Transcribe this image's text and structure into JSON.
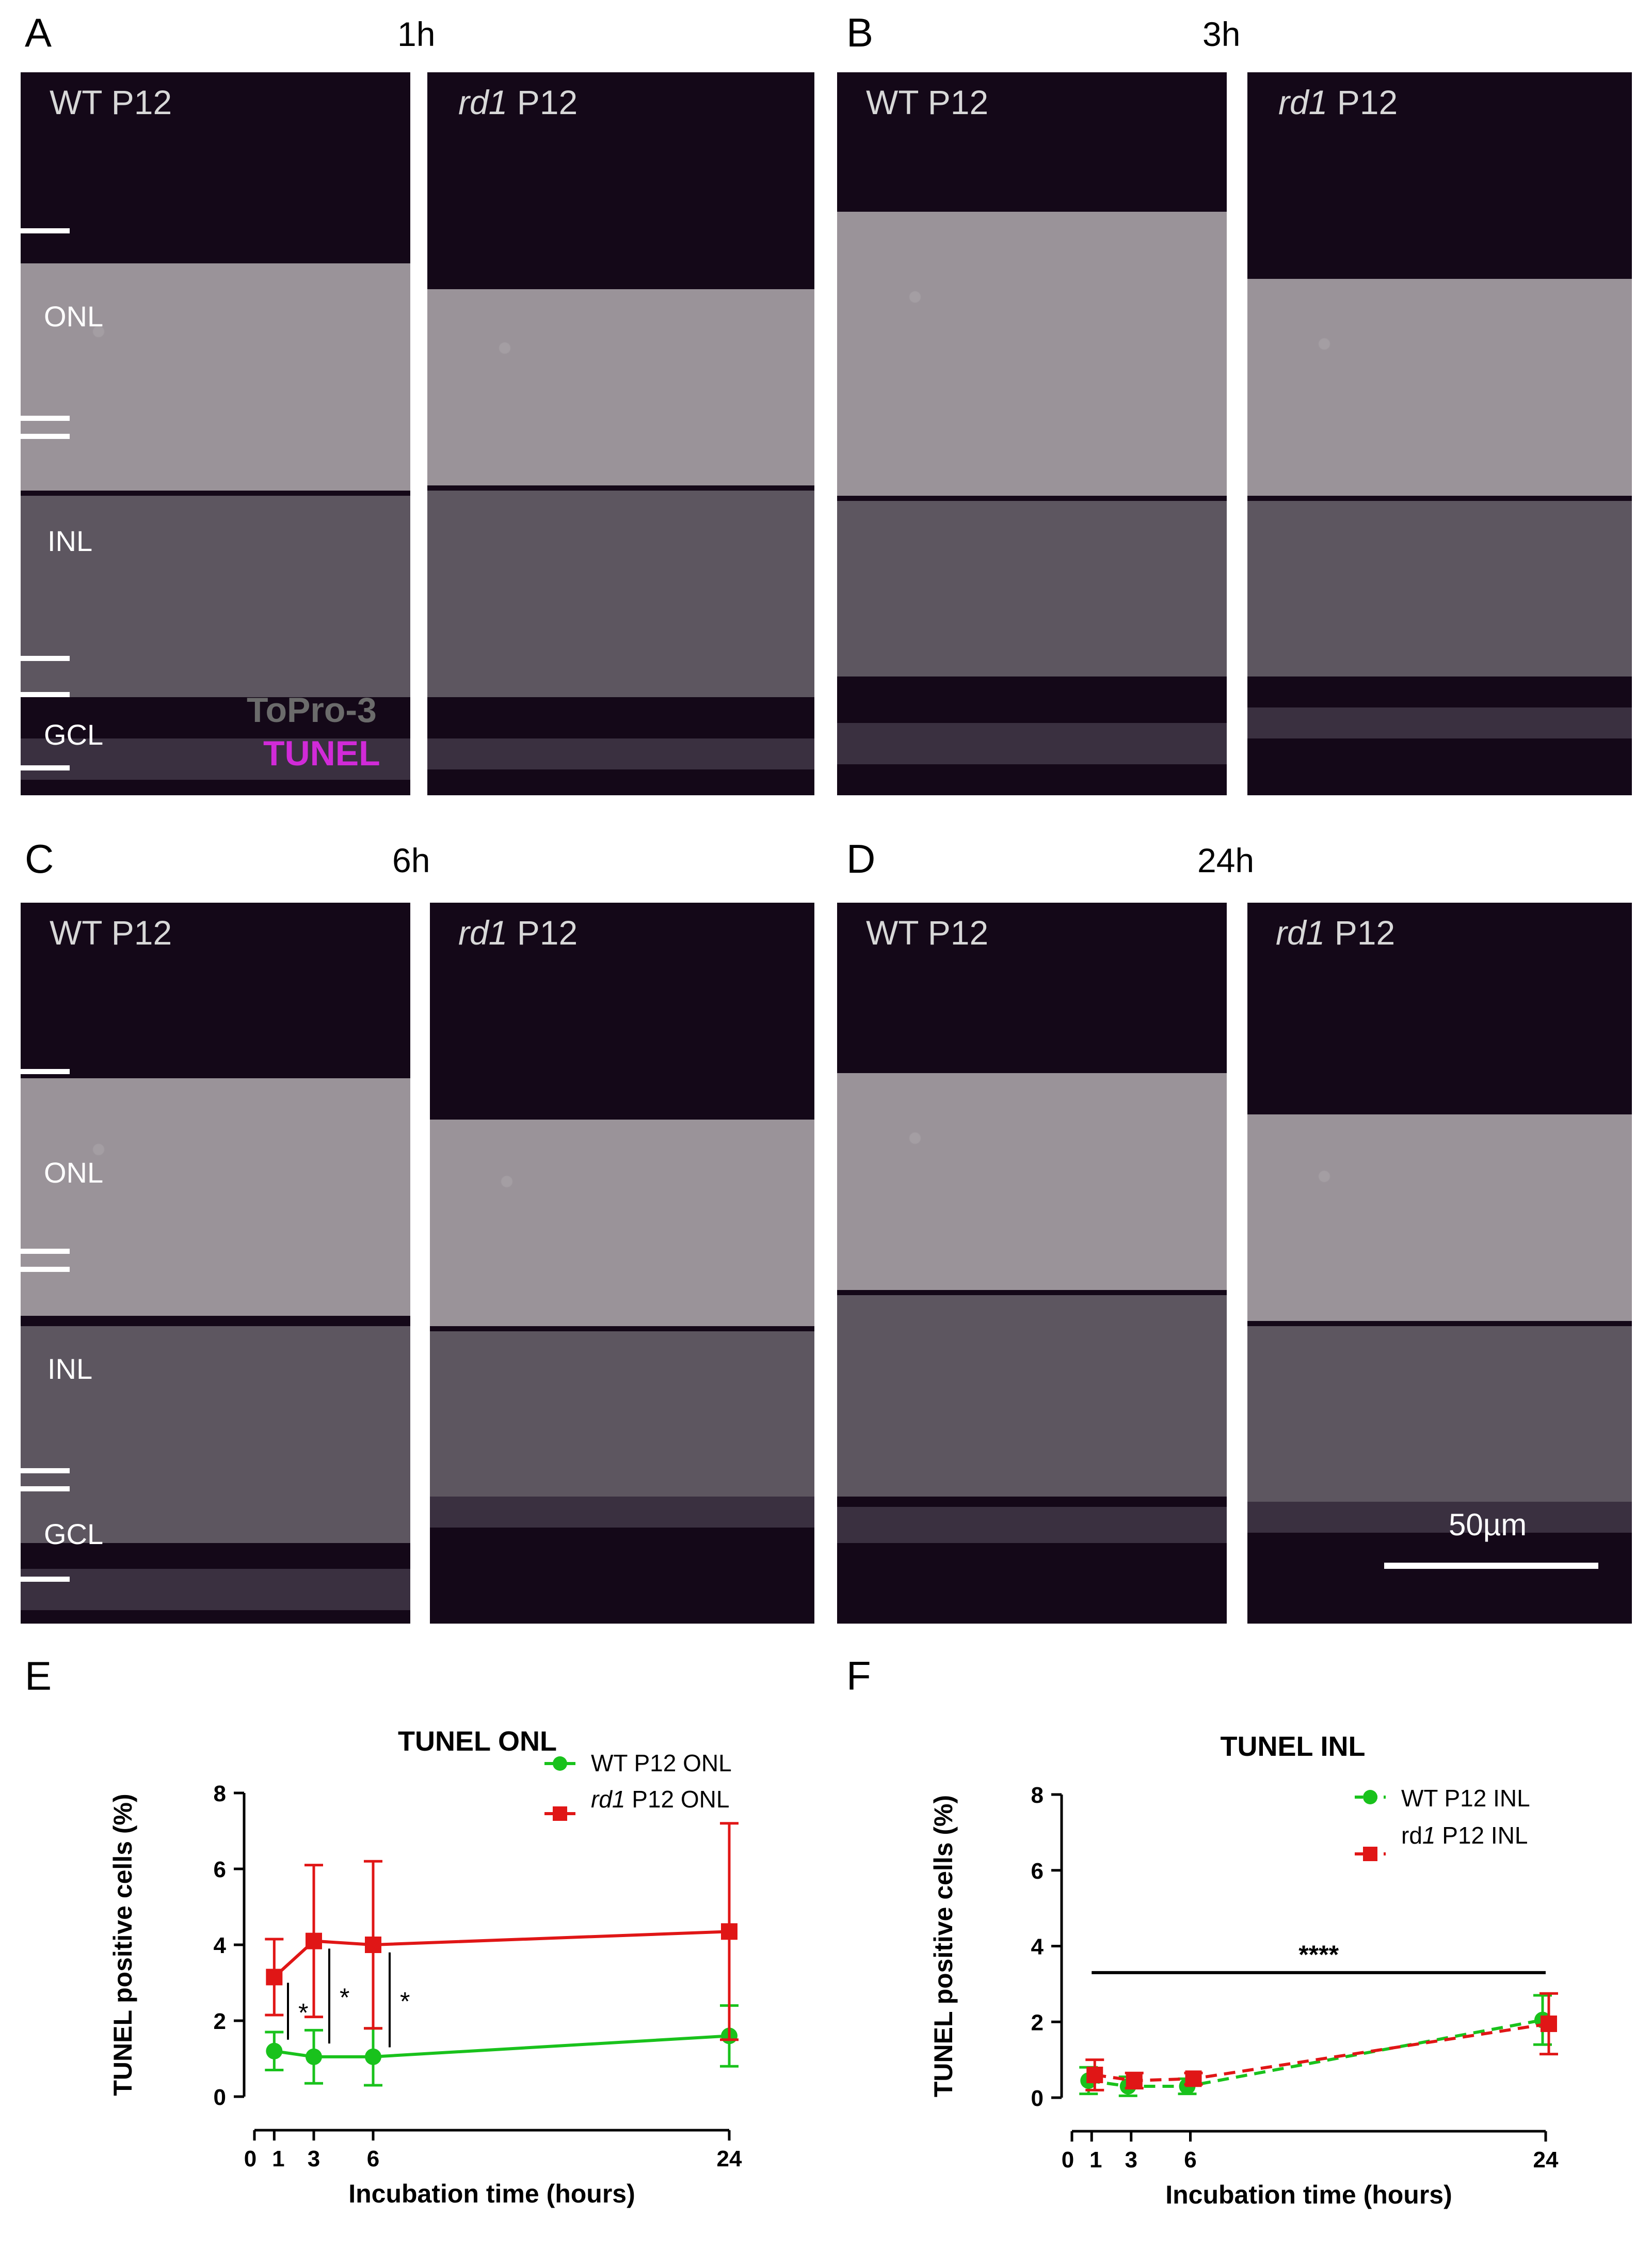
{
  "panels": {
    "A": {
      "letter": "A",
      "time": "1h"
    },
    "B": {
      "letter": "B",
      "time": "3h"
    },
    "C": {
      "letter": "C",
      "time": "6h"
    },
    "D": {
      "letter": "D",
      "time": "24h"
    },
    "E": {
      "letter": "E"
    },
    "F": {
      "letter": "F"
    }
  },
  "micro_labels": {
    "wt": "WT P12",
    "rd1_italic": "rd1",
    "rd1_rest": " P12"
  },
  "layers": {
    "onl": "ONL",
    "inl": "INL",
    "gcl": "GCL"
  },
  "stain_legend": {
    "topro": "ToPro-3",
    "tunel": "TUNEL"
  },
  "scale_bar": {
    "label": "50µm"
  },
  "colors": {
    "wt": "#19c21c",
    "rd1": "#e01616",
    "tunel": "#d12ad8"
  },
  "chart_data": [
    {
      "type": "line",
      "title": "TUNEL ONL",
      "xlabel": "Incubation time (hours)",
      "ylabel": "TUNEL positive cells (%)",
      "xlim": [
        0,
        24
      ],
      "ylim": [
        0,
        8
      ],
      "xticks": [
        0,
        1,
        3,
        6,
        24
      ],
      "yticks": [
        0,
        2,
        4,
        6,
        8
      ],
      "series": [
        {
          "name": "WT P12 ONL",
          "marker": "circle",
          "dashed": false,
          "x": [
            1,
            3,
            6,
            24
          ],
          "y": [
            1.2,
            1.05,
            1.05,
            1.6
          ],
          "err": [
            0.5,
            0.7,
            0.75,
            0.8
          ]
        },
        {
          "name": "rd1 P12 ONL",
          "name_italic": "rd1",
          "name_rest": " P12 ONL",
          "marker": "square",
          "dashed": false,
          "x": [
            1,
            3,
            6,
            24
          ],
          "y": [
            3.15,
            4.1,
            4.0,
            4.35
          ],
          "err": [
            1.0,
            2.0,
            2.2,
            2.85
          ]
        }
      ],
      "annotations": [
        "*",
        "*",
        "*"
      ]
    },
    {
      "type": "line",
      "title": "TUNEL INL",
      "xlabel": "Incubation time (hours)",
      "ylabel": "TUNEL positive cells (%)",
      "xlim": [
        0,
        24
      ],
      "ylim": [
        0,
        8
      ],
      "xticks": [
        0,
        1,
        3,
        6,
        24
      ],
      "yticks": [
        0,
        2,
        4,
        6,
        8
      ],
      "series": [
        {
          "name": "WT P12 INL",
          "marker": "circle",
          "dashed": true,
          "x": [
            1,
            3,
            6,
            24
          ],
          "y": [
            0.45,
            0.3,
            0.3,
            2.05
          ],
          "err": [
            0.35,
            0.25,
            0.2,
            0.65
          ]
        },
        {
          "name": "rd1 P12 INL",
          "name_italic": "1",
          "name_prefix": "rd",
          "name_rest": " P12 INL",
          "marker": "square",
          "dashed": true,
          "x": [
            1,
            3,
            6,
            24
          ],
          "y": [
            0.6,
            0.45,
            0.5,
            1.95
          ],
          "err": [
            0.4,
            0.2,
            0.15,
            0.8
          ]
        }
      ],
      "annotations": [
        "****"
      ]
    }
  ]
}
